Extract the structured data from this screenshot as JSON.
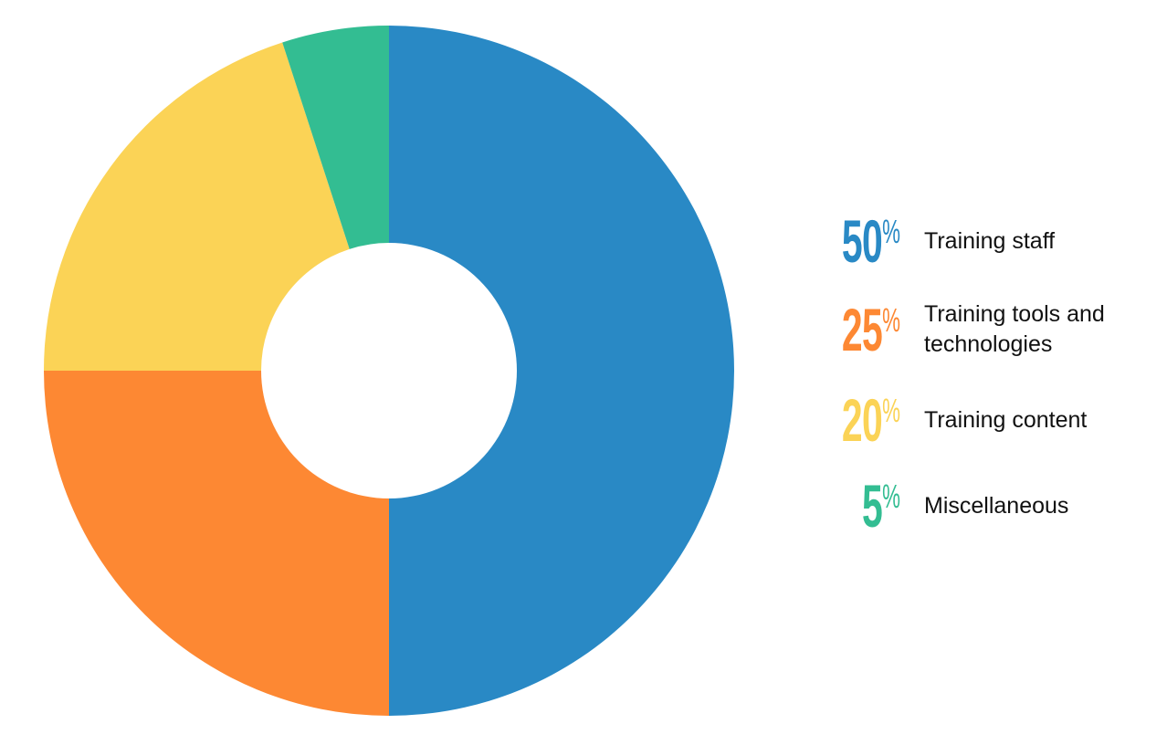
{
  "chart_data": {
    "type": "pie",
    "subtype": "donut",
    "title": "",
    "categories": [
      "Training staff",
      "Training tools and technologies",
      "Training content",
      "Miscellaneous"
    ],
    "values": [
      50,
      25,
      20,
      5
    ],
    "unit": "%",
    "colors": [
      "#2989c5",
      "#fd8833",
      "#fbd356",
      "#33bd92"
    ],
    "start_angle_deg": 0,
    "direction": "clockwise",
    "legend_position": "right"
  },
  "legend": {
    "items": [
      {
        "pct": "50",
        "sign": "%",
        "label": "Training staff",
        "color": "#2989c5"
      },
      {
        "pct": "25",
        "sign": "%",
        "label": "Training tools and technologies",
        "color": "#fd8833"
      },
      {
        "pct": "20",
        "sign": "%",
        "label": "Training content",
        "color": "#fbd356"
      },
      {
        "pct": "5",
        "sign": "%",
        "label": "Miscellaneous",
        "color": "#33bd92"
      }
    ]
  }
}
